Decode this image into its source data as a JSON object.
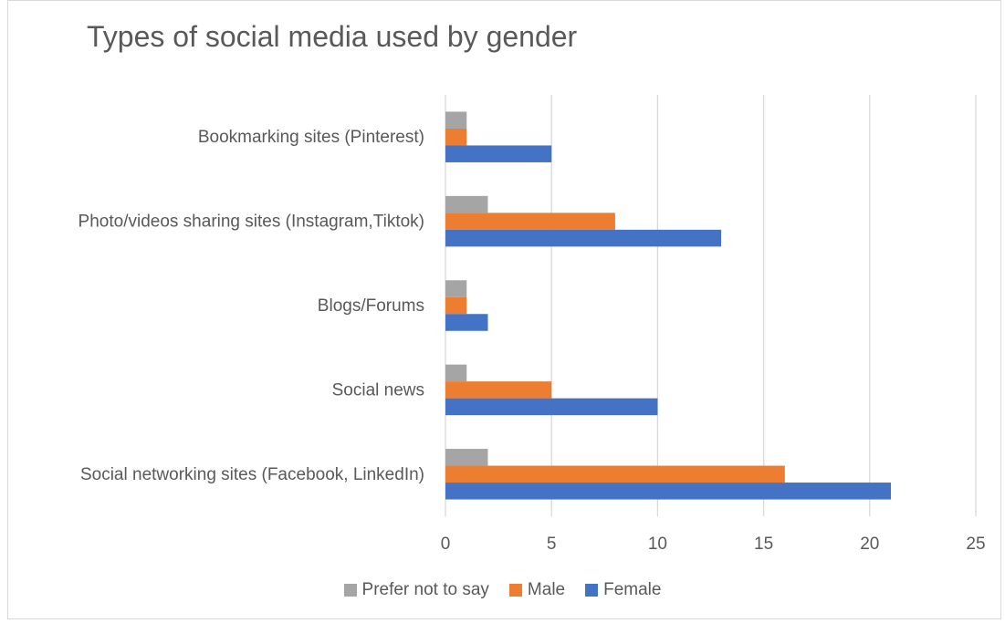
{
  "chart_data": {
    "type": "bar",
    "orientation": "horizontal",
    "title": "Types of social media used by gender",
    "categories": [
      "Social networking sites (Facebook, LinkedIn)",
      "Social news",
      "Blogs/Forums",
      "Photo/videos sharing sites (Instagram,Tiktok)",
      "Bookmarking sites (Pinterest)"
    ],
    "series": [
      {
        "name": "Prefer not to say",
        "color": "#a5a5a5",
        "values": [
          2,
          1,
          1,
          2,
          1
        ]
      },
      {
        "name": "Male",
        "color": "#ed7d31",
        "values": [
          16,
          5,
          1,
          8,
          1
        ]
      },
      {
        "name": "Female",
        "color": "#4472c4",
        "values": [
          21,
          10,
          2,
          13,
          5
        ]
      }
    ],
    "xlim": [
      0,
      25
    ],
    "xticks": [
      0,
      5,
      10,
      15,
      20,
      25
    ],
    "grid": true,
    "legend_position": "bottom"
  }
}
